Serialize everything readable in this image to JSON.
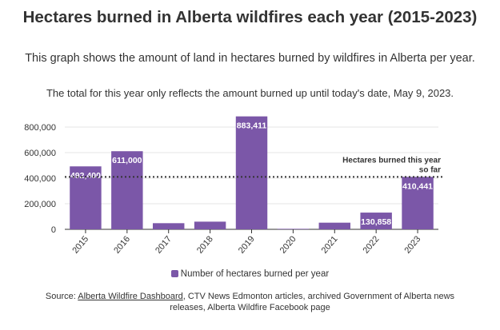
{
  "title": "Hectares burned in Alberta wildfires each year (2015-2023)",
  "subtitle": "This graph shows the amount of land in hectares burned by wildfires in Alberta per year.",
  "note": "The total for this year only reflects the amount burned up until today's date, May 9, 2023.",
  "source": {
    "prefix": "Source: ",
    "link_text": "Alberta Wildfire Dashboard",
    "rest": ", CTV News Edmonton articles, archived Government of Alberta news releases, Alberta Wildfire Facebook page"
  },
  "colors": {
    "bar": "#7b57a8",
    "grid": "#e5e5e5",
    "axis": "#333333",
    "reference": "#333333"
  },
  "chart_data": {
    "type": "bar",
    "categories": [
      "2015",
      "2016",
      "2017",
      "2018",
      "2019",
      "2020",
      "2021",
      "2022",
      "2023"
    ],
    "series": [
      {
        "name": "Number of hectares burned per year",
        "values": [
          492400,
          611000,
          48000,
          60000,
          883411,
          4000,
          52000,
          130858,
          410441
        ]
      }
    ],
    "data_labels": [
      "492,400",
      "611,000",
      "",
      "",
      "883,411",
      "",
      "",
      "130,858",
      "410,441"
    ],
    "y_ticks": [
      0,
      200000,
      400000,
      600000,
      800000
    ],
    "y_tick_labels": [
      "0",
      "200,000",
      "400,000",
      "600,000",
      "800,000"
    ],
    "ylim": [
      0,
      900000
    ],
    "reference_line": {
      "value": 410441,
      "label_lines": [
        "Hectares burned this year",
        "so far"
      ]
    },
    "legend": {
      "position": "bottom",
      "label": "Number of hectares burned per year"
    },
    "grid": true
  }
}
